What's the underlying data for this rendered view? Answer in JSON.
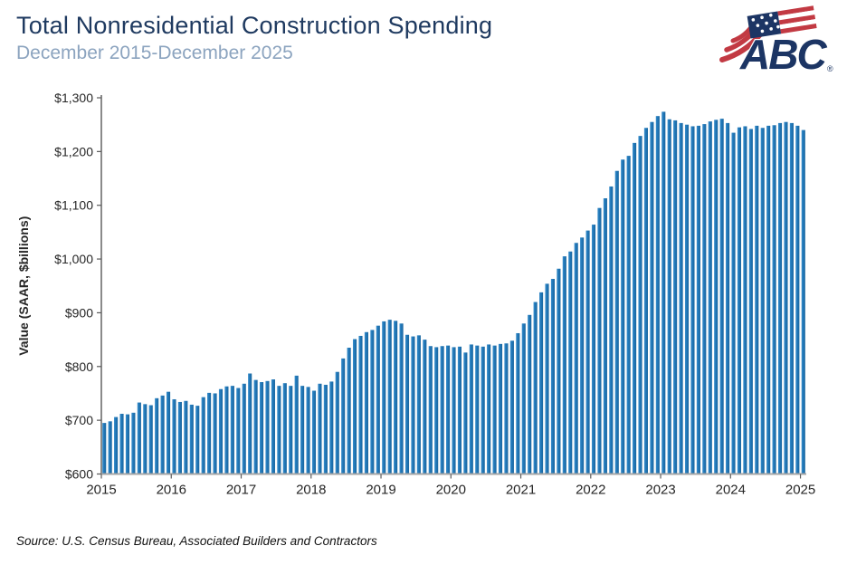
{
  "header": {
    "title": "Total Nonresidential Construction Spending",
    "subtitle": "December 2015-December 2025"
  },
  "logo": {
    "text": "ABC",
    "reg": "®",
    "navy": "#1c3564",
    "red": "#c23a43"
  },
  "source": {
    "text": "Source: U.S. Census Bureau, Associated Builders and Contractors"
  },
  "chart_data": {
    "type": "bar",
    "title": "Total Nonresidential Construction Spending",
    "subtitle": "December 2015-December 2025",
    "ylabel": "Value (SAAR, $billions)",
    "xlabel": "",
    "ylim": [
      600,
      1300
    ],
    "ytick_step": 100,
    "ytick_labels": [
      "$600",
      "$700",
      "$800",
      "$900",
      "$1,000",
      "$1,100",
      "$1,200",
      "$1,300"
    ],
    "xtick_labels": [
      "2015",
      "2016",
      "2017",
      "2018",
      "2019",
      "2020",
      "2021",
      "2022",
      "2023",
      "2024",
      "2025"
    ],
    "x_unit": "month",
    "x_start_label": "Dec 2015",
    "x_end_label": "Dec 2025",
    "months_per_xtick": 12,
    "grid": false,
    "legend": "none",
    "bar_color": "#2077b8",
    "bar_color_light": "#3c90cc",
    "bar_color_dark": "#1b669e",
    "axis_color": "#595959",
    "xaxis_color": "#a6a6a6",
    "tick_text_color": "#262626",
    "values": [
      695,
      698,
      706,
      712,
      711,
      714,
      733,
      730,
      728,
      741,
      746,
      753,
      739,
      734,
      736,
      729,
      727,
      743,
      751,
      750,
      758,
      763,
      764,
      760,
      768,
      787,
      775,
      771,
      773,
      776,
      764,
      769,
      764,
      783,
      764,
      762,
      755,
      768,
      766,
      772,
      790,
      815,
      835,
      851,
      857,
      864,
      868,
      876,
      884,
      887,
      885,
      880,
      859,
      856,
      858,
      850,
      838,
      836,
      838,
      839,
      836,
      837,
      826,
      841,
      839,
      837,
      841,
      839,
      842,
      843,
      848,
      862,
      880,
      896,
      920,
      938,
      954,
      963,
      982,
      1005,
      1014,
      1030,
      1040,
      1053,
      1064,
      1095,
      1113,
      1135,
      1164,
      1185,
      1192,
      1216,
      1229,
      1244,
      1255,
      1266,
      1274,
      1260,
      1258,
      1253,
      1250,
      1247,
      1248,
      1251,
      1256,
      1259,
      1261,
      1253,
      1235,
      1245,
      1247,
      1242,
      1248,
      1244,
      1248,
      1249,
      1253,
      1255,
      1253,
      1248,
      1240
    ]
  }
}
